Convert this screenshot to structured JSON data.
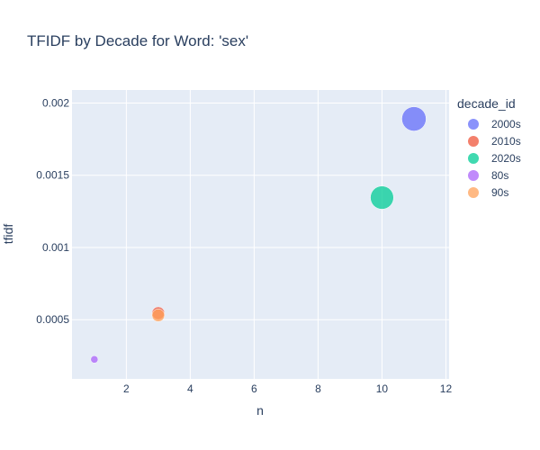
{
  "chart_data": {
    "type": "scatter",
    "title": "TFIDF by Decade for Word: 'sex'",
    "xlabel": "n",
    "ylabel": "tfidf",
    "xlim": [
      0.3,
      12.1
    ],
    "ylim": [
      9e-05,
      0.00209
    ],
    "xticks": [
      2,
      4,
      6,
      8,
      10,
      12
    ],
    "xtick_labels": [
      "2",
      "4",
      "6",
      "8",
      "10",
      "12"
    ],
    "yticks": [
      0.0005,
      0.001,
      0.0015,
      0.002
    ],
    "ytick_labels": [
      "0.0005",
      "0.001",
      "0.0015",
      "0.002"
    ],
    "grid": true,
    "legend_title": "decade_id",
    "legend_position": "right",
    "size_variable": "n",
    "series": [
      {
        "name": "2000s",
        "color": "#636efa",
        "points": [
          {
            "x": 11,
            "y": 0.00189
          }
        ]
      },
      {
        "name": "2010s",
        "color": "#ef553b",
        "points": [
          {
            "x": 3,
            "y": 0.000545
          }
        ]
      },
      {
        "name": "2020s",
        "color": "#00cc96",
        "points": [
          {
            "x": 10,
            "y": 0.001345
          }
        ]
      },
      {
        "name": "80s",
        "color": "#ab63fa",
        "points": [
          {
            "x": 1,
            "y": 0.000225
          }
        ]
      },
      {
        "name": "90s",
        "color": "#ffa15a",
        "points": [
          {
            "x": 3,
            "y": 0.00053
          }
        ]
      }
    ]
  }
}
